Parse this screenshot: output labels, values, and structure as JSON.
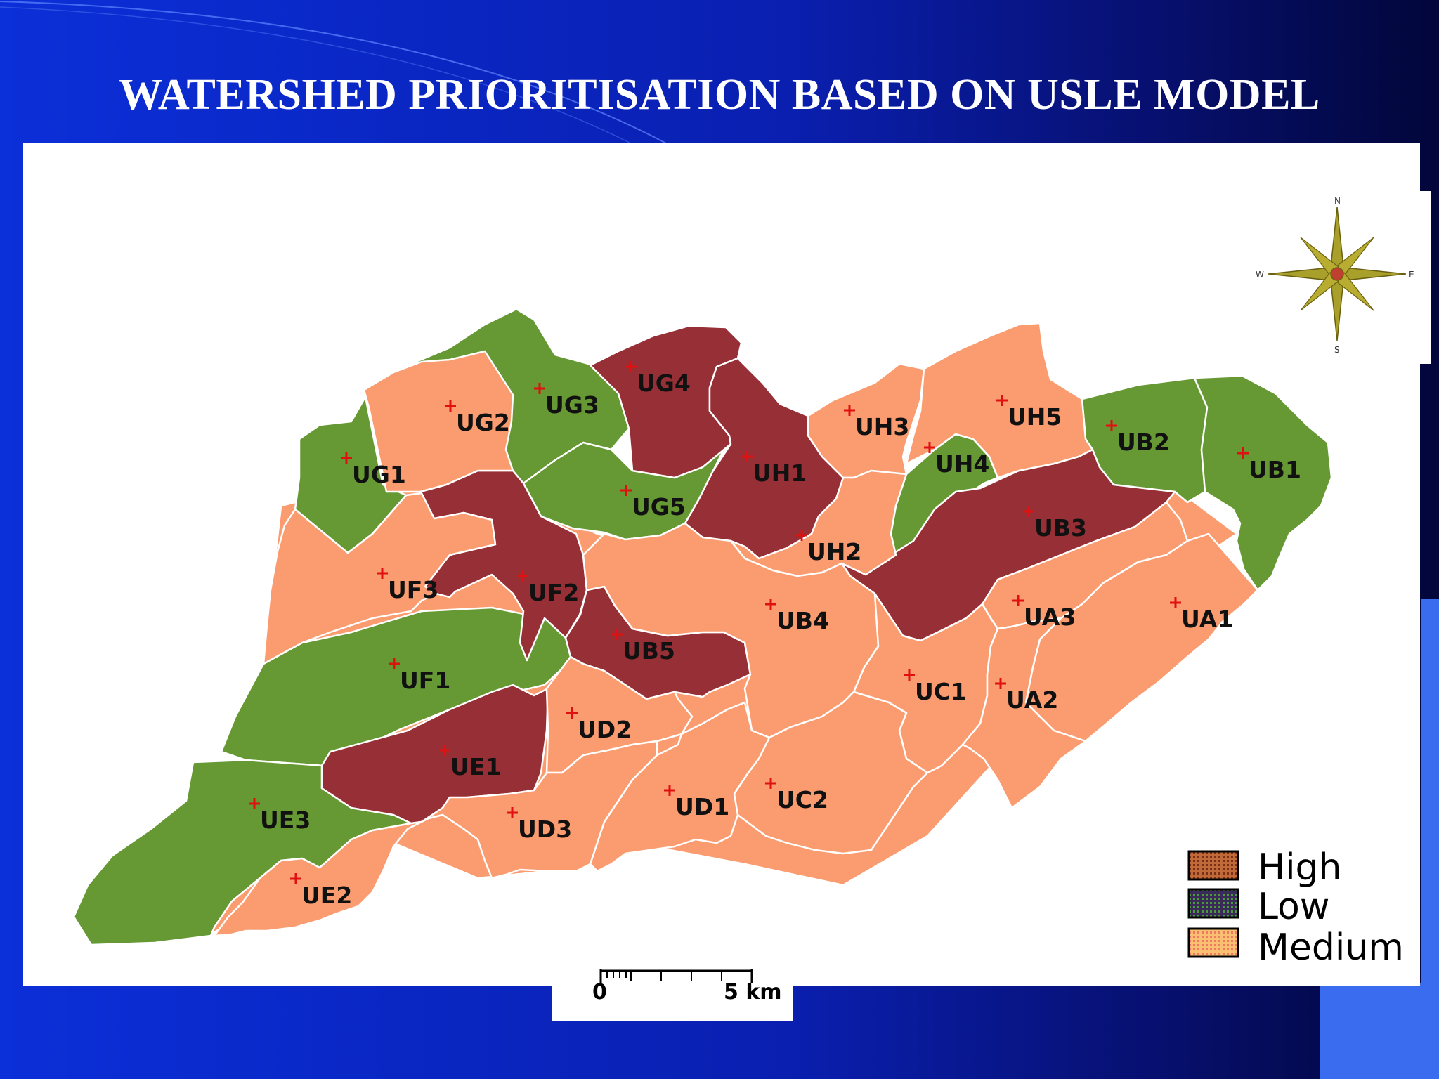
{
  "title": "WATERSHED PRIORITISATION BASED ON USLE MODEL",
  "colors": {
    "high": "#963036",
    "low": "#669933",
    "medium": "#fa9c70",
    "border": "#ffffff",
    "marker": "#e01010"
  },
  "map": {
    "subwatersheds": [
      {
        "id": "UG4",
        "label": "UG4",
        "priority": "high"
      },
      {
        "id": "UH1",
        "label": "UH1",
        "priority": "high"
      },
      {
        "id": "UF2",
        "label": "UF2",
        "priority": "high"
      },
      {
        "id": "UB5",
        "label": "UB5",
        "priority": "high"
      },
      {
        "id": "UB3",
        "label": "UB3",
        "priority": "high"
      },
      {
        "id": "UE1",
        "label": "UE1",
        "priority": "high"
      },
      {
        "id": "UG1",
        "label": "UG1",
        "priority": "low"
      },
      {
        "id": "UG3",
        "label": "UG3",
        "priority": "low"
      },
      {
        "id": "UG5",
        "label": "UG5",
        "priority": "low"
      },
      {
        "id": "UF1",
        "label": "UF1",
        "priority": "low"
      },
      {
        "id": "UE3",
        "label": "UE3",
        "priority": "low"
      },
      {
        "id": "UH4",
        "label": "UH4",
        "priority": "low"
      },
      {
        "id": "UB2",
        "label": "UB2",
        "priority": "low"
      },
      {
        "id": "UB1",
        "label": "UB1",
        "priority": "low"
      },
      {
        "id": "UG2",
        "label": "UG2",
        "priority": "medium"
      },
      {
        "id": "UF3",
        "label": "UF3",
        "priority": "medium"
      },
      {
        "id": "UH3",
        "label": "UH3",
        "priority": "medium"
      },
      {
        "id": "UH5",
        "label": "UH5",
        "priority": "medium"
      },
      {
        "id": "UH2",
        "label": "UH2",
        "priority": "medium"
      },
      {
        "id": "UB4",
        "label": "UB4",
        "priority": "medium"
      },
      {
        "id": "UA3",
        "label": "UA3",
        "priority": "medium"
      },
      {
        "id": "UA1",
        "label": "UA1",
        "priority": "medium"
      },
      {
        "id": "UC1",
        "label": "UC1",
        "priority": "medium"
      },
      {
        "id": "UA2",
        "label": "UA2",
        "priority": "medium"
      },
      {
        "id": "UD2",
        "label": "UD2",
        "priority": "medium"
      },
      {
        "id": "UD1",
        "label": "UD1",
        "priority": "medium"
      },
      {
        "id": "UC2",
        "label": "UC2",
        "priority": "medium"
      },
      {
        "id": "UD3",
        "label": "UD3",
        "priority": "medium"
      },
      {
        "id": "UE2",
        "label": "UE2",
        "priority": "medium"
      }
    ]
  },
  "legend": {
    "items": [
      {
        "label": "High",
        "color": "#963036"
      },
      {
        "label": "Low",
        "color": "#669933"
      },
      {
        "label": "Medium",
        "color": "#fa9c70"
      }
    ]
  },
  "scale_bar": {
    "start_label": "0",
    "end_label": "5 km"
  },
  "compass": {
    "n": "N",
    "s": "S",
    "e": "E",
    "w": "W"
  }
}
